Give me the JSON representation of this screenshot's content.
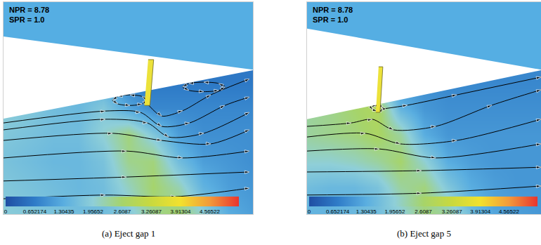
{
  "chart_data": [
    {
      "type": "contour",
      "annotations": [
        "NPR = 8.78",
        "SPR = 1.0"
      ],
      "caption": "(a) Eject gap 1",
      "x": [
        0,
        1,
        2,
        3,
        4,
        5,
        6,
        7,
        8,
        9,
        10
      ],
      "y": [
        0,
        1,
        2,
        3,
        4,
        5,
        6,
        7,
        8
      ],
      "z": [
        [
          1.9,
          1.8,
          1.7,
          1.6,
          1.6,
          1.8,
          2.4,
          2.6,
          2.0,
          1.3,
          1.1
        ],
        [
          1.8,
          1.7,
          1.6,
          1.5,
          1.6,
          2.1,
          2.6,
          2.2,
          1.4,
          1.1,
          1.0
        ],
        [
          1.7,
          1.6,
          1.5,
          1.5,
          1.7,
          2.4,
          2.5,
          1.6,
          1.1,
          1.0,
          0.9
        ],
        [
          1.8,
          1.7,
          1.6,
          1.6,
          2.0,
          2.5,
          1.8,
          1.1,
          0.9,
          0.9,
          0.9
        ],
        [
          1.9,
          1.8,
          1.6,
          1.5,
          1.8,
          1.2,
          0.8,
          0.8,
          0.8,
          0.8,
          0.8
        ],
        [
          1.9,
          1.8,
          1.6,
          1.5,
          1.3,
          0.7,
          0.6,
          0.6,
          0.6,
          0.6,
          0.6
        ],
        [
          1.9,
          1.8,
          1.6,
          1.5,
          1.3,
          0.7,
          0.6,
          0.6,
          0.6,
          0.6,
          0.6
        ],
        [
          1.9,
          1.8,
          1.6,
          1.5,
          1.3,
          0.7,
          0.6,
          0.6,
          0.6,
          0.6,
          0.6
        ],
        [
          1.9,
          1.8,
          1.6,
          1.5,
          1.3,
          0.7,
          0.6,
          0.6,
          0.6,
          0.6,
          0.6
        ]
      ],
      "xlim": [
        0,
        10
      ],
      "ylim": [
        0,
        8
      ],
      "xticks": [],
      "yticks": [],
      "tick_labels": false,
      "colorbar": {
        "range": [
          0,
          5.21739
        ],
        "ticks": [
          0,
          0.652174,
          1.30435,
          1.95652,
          2.6087,
          3.26087,
          3.91304,
          4.56522
        ]
      },
      "marker": "arrow",
      "color": "#000000",
      "streamlines": [
        {
          "x": [
            0,
            4.08,
            5.49,
            6.34,
            7.46,
            8.87,
            9.86
          ],
          "y": [
            3.44,
            3.89,
            3.84,
            3.31,
            3.44,
            4.1,
            4.42
          ]
        },
        {
          "x": [
            0,
            4.08,
            5.77,
            6.62,
            8.03,
            9.86
          ],
          "y": [
            3.18,
            3.58,
            3.44,
            2.91,
            3.05,
            3.84
          ]
        },
        {
          "x": [
            0,
            4.37,
            6.34,
            8.31,
            9.86
          ],
          "y": [
            2.78,
            3.05,
            2.78,
            2.65,
            3.18
          ]
        },
        {
          "x": [
            0,
            4.93,
            7.18,
            9.86
          ],
          "y": [
            2.12,
            2.38,
            2.12,
            2.38
          ]
        },
        {
          "x": [
            0,
            4.93,
            9.86
          ],
          "y": [
            1.25,
            1.4,
            1.59
          ]
        },
        {
          "x": [
            0,
            4.08,
            6.9,
            9.86
          ],
          "y": [
            0.58,
            0.72,
            0.66,
            0.98
          ]
        },
        {
          "x": [
            5.83,
            6.34,
            7.18,
            8.31,
            9.86
          ],
          "y": [
            4.1,
            3.7,
            3.9,
            4.5,
            5.1
          ]
        },
        {
          "x": [
            5.77,
            5.56,
            5.07,
            4.58,
            4.37,
            4.58,
            5.07,
            5.56,
            5.77
          ],
          "y": [
            4.3,
            4.44,
            4.5,
            4.44,
            4.3,
            4.16,
            4.1,
            4.16,
            4.3
          ]
        },
        {
          "x": [
            8.88,
            8.63,
            8.03,
            7.43,
            7.18,
            7.43,
            8.03,
            8.63,
            8.88
          ],
          "y": [
            4.8,
            4.93,
            4.98,
            4.93,
            4.8,
            4.67,
            4.62,
            4.67,
            4.8
          ]
        }
      ],
      "solid": {
        "x": [
          0,
          10,
          10,
          0
        ],
        "y": [
          8,
          8,
          5.43,
          3.6
        ]
      },
      "wall": {
        "x": [
          0,
          10,
          10,
          0
        ],
        "y": [
          8,
          8,
          5.45,
          6.7
        ]
      },
      "injector": {
        "x": [
          5.8,
          6.02,
          5.87,
          5.65
        ],
        "y": [
          5.83,
          5.83,
          4.1,
          4.1
        ]
      }
    },
    {
      "type": "contour",
      "annotations": [
        "NPR = 8.78",
        "SPR = 1.0"
      ],
      "caption": "(b) Eject gap 5",
      "x": [
        0,
        1,
        2,
        3,
        4,
        5,
        6,
        7,
        8,
        9,
        10
      ],
      "y": [
        0,
        1,
        2,
        3,
        4,
        5,
        6,
        7,
        8
      ],
      "z": [
        [
          1.4,
          1.4,
          1.5,
          1.6,
          1.9,
          2.5,
          2.3,
          1.6,
          1.2,
          1.1,
          1.0
        ],
        [
          1.6,
          1.5,
          1.5,
          1.7,
          2.3,
          2.5,
          1.8,
          1.3,
          1.1,
          1.0,
          1.0
        ],
        [
          2.0,
          2.0,
          2.1,
          2.3,
          2.6,
          2.0,
          1.3,
          1.1,
          1.0,
          1.0,
          1.0
        ],
        [
          2.3,
          2.4,
          2.5,
          2.7,
          2.3,
          1.3,
          1.0,
          1.0,
          1.0,
          1.0,
          1.0
        ],
        [
          2.3,
          2.4,
          2.6,
          2.8,
          1.4,
          1.0,
          0.9,
          0.9,
          0.9,
          0.9,
          0.9
        ],
        [
          2.3,
          2.4,
          2.5,
          1.5,
          1.0,
          0.9,
          0.8,
          0.8,
          0.8,
          0.8,
          0.8
        ],
        [
          2.3,
          2.4,
          2.5,
          1.5,
          1.0,
          0.9,
          0.8,
          0.8,
          0.8,
          0.8,
          0.8
        ],
        [
          2.3,
          2.4,
          2.5,
          1.5,
          1.0,
          0.9,
          0.8,
          0.8,
          0.8,
          0.8,
          0.8
        ],
        [
          2.3,
          2.4,
          2.5,
          1.5,
          1.0,
          0.9,
          0.8,
          0.8,
          0.8,
          0.8,
          0.8
        ]
      ],
      "xlim": [
        0,
        10
      ],
      "ylim": [
        0,
        8
      ],
      "xticks": [],
      "yticks": [],
      "tick_labels": false,
      "colorbar": {
        "range": [
          0,
          5.21739
        ],
        "ticks": [
          0,
          0.652174,
          1.30435,
          1.95652,
          2.6087,
          3.26087,
          3.91304,
          4.56522
        ]
      },
      "marker": "arrow",
      "color": "#000000",
      "streamlines": [
        {
          "x": [
            0,
            1.89,
            2.79,
            3.69,
            5.5,
            7.9,
            10
          ],
          "y": [
            3.31,
            3.44,
            3.58,
            3.18,
            3.31,
            4.11,
            4.69
          ]
        },
        {
          "x": [
            0,
            2.49,
            3.99,
            6.4,
            10
          ],
          "y": [
            2.91,
            3.05,
            2.65,
            2.78,
            3.58
          ]
        },
        {
          "x": [
            0,
            3.09,
            5.5,
            10
          ],
          "y": [
            2.38,
            2.46,
            2.12,
            2.65
          ]
        },
        {
          "x": [
            0,
            4.89,
            10
          ],
          "y": [
            1.59,
            1.64,
            1.77
          ]
        },
        {
          "x": [
            0,
            4.89,
            10
          ],
          "y": [
            0.72,
            0.79,
            1.06
          ]
        },
        {
          "x": [
            3.24,
            4.29,
            6.4,
            10
          ],
          "y": [
            3.97,
            4.11,
            4.5,
            5.17
          ]
        },
        {
          "x": [
            3.25,
            3.18,
            3.0,
            2.82,
            2.75,
            2.82,
            3.0,
            3.18,
            3.25
          ],
          "y": [
            4.0,
            4.07,
            4.1,
            4.07,
            4.0,
            3.93,
            3.9,
            3.93,
            4.0
          ]
        }
      ],
      "solid": {
        "x": [
          0,
          10,
          10,
          0
        ],
        "y": [
          8,
          8,
          5.43,
          3.58
        ]
      },
      "wall": {
        "x": [
          0,
          10,
          10,
          0
        ],
        "y": [
          8,
          8,
          5.45,
          7.0
        ]
      },
      "injector": {
        "x": [
          3.06,
          3.24,
          3.12,
          2.94
        ],
        "y": [
          5.56,
          5.56,
          3.84,
          3.84
        ]
      }
    }
  ]
}
